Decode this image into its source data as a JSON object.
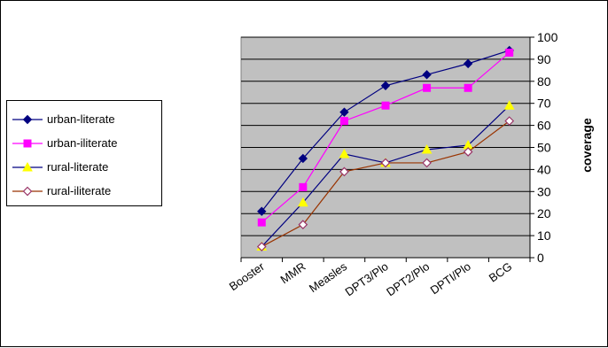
{
  "chart_data": {
    "type": "line",
    "title": "",
    "xlabel": "",
    "ylabel": "coverage",
    "ylim": [
      0,
      100
    ],
    "yticks": [
      0,
      10,
      20,
      30,
      40,
      50,
      60,
      70,
      80,
      90,
      100
    ],
    "grid": true,
    "legend_position": "left",
    "plot_background": "#c0c0c0",
    "categories": [
      "Booster",
      "MMR",
      "Measles",
      "DPT3/Plo",
      "DPT2/Plo",
      "DPTI/Plo",
      "BCG"
    ],
    "series": [
      {
        "name": "urban-literate",
        "color": "#000080",
        "marker": "diamond",
        "values": [
          21,
          45,
          66,
          78,
          83,
          88,
          94
        ]
      },
      {
        "name": "urban-iliterate",
        "color": "#ff00ff",
        "marker": "square",
        "values": [
          16,
          32,
          62,
          69,
          77,
          77,
          93
        ]
      },
      {
        "name": "rural-literate",
        "color": "#000080",
        "marker": "triangle",
        "marker_color": "#ffff00",
        "values": [
          5,
          25,
          47,
          43,
          49,
          51,
          69
        ]
      },
      {
        "name": "rural-iliterate",
        "color": "#993300",
        "marker": "open-diamond",
        "marker_color": "#993366",
        "values": [
          5,
          15,
          39,
          43,
          43,
          48,
          62
        ]
      }
    ]
  }
}
